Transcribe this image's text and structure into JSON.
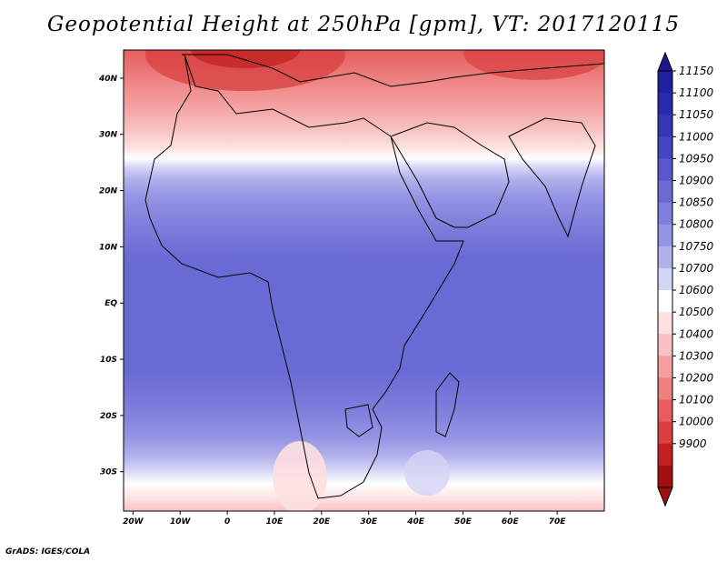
{
  "title": "Geopotential Height at 250hPa [gpm], VT: 2017120115",
  "credit": "GrADS: IGES/COLA",
  "map": {
    "lon_range": [
      -22,
      80
    ],
    "lat_range": [
      -37,
      45
    ],
    "x_ticks": [
      "20W",
      "10W",
      "0",
      "10E",
      "20E",
      "30E",
      "40E",
      "50E",
      "60E",
      "70E"
    ],
    "y_ticks": [
      "40N",
      "30N",
      "20N",
      "10N",
      "EQ",
      "10S",
      "20S",
      "30S"
    ]
  },
  "colorbar": {
    "labels": [
      "11150",
      "11100",
      "11050",
      "11000",
      "10950",
      "10900",
      "10850",
      "10800",
      "10750",
      "10700",
      "10600",
      "10500",
      "10400",
      "10300",
      "10200",
      "10100",
      "10000",
      "9900"
    ],
    "colors": [
      "#2020a0",
      "#2a2aac",
      "#3535b6",
      "#4545c2",
      "#5858cc",
      "#6a6ad4",
      "#7e7edc",
      "#9494e4",
      "#b0b0ec",
      "#d4d4f6",
      "#ffffff",
      "#fde0e0",
      "#f8c0c0",
      "#f4a0a0",
      "#ee8080",
      "#e45e5e",
      "#d84040",
      "#c02020",
      "#a01010"
    ],
    "top_arrow_color": "#1a1a8c",
    "bottom_arrow_color": "#a01010"
  }
}
